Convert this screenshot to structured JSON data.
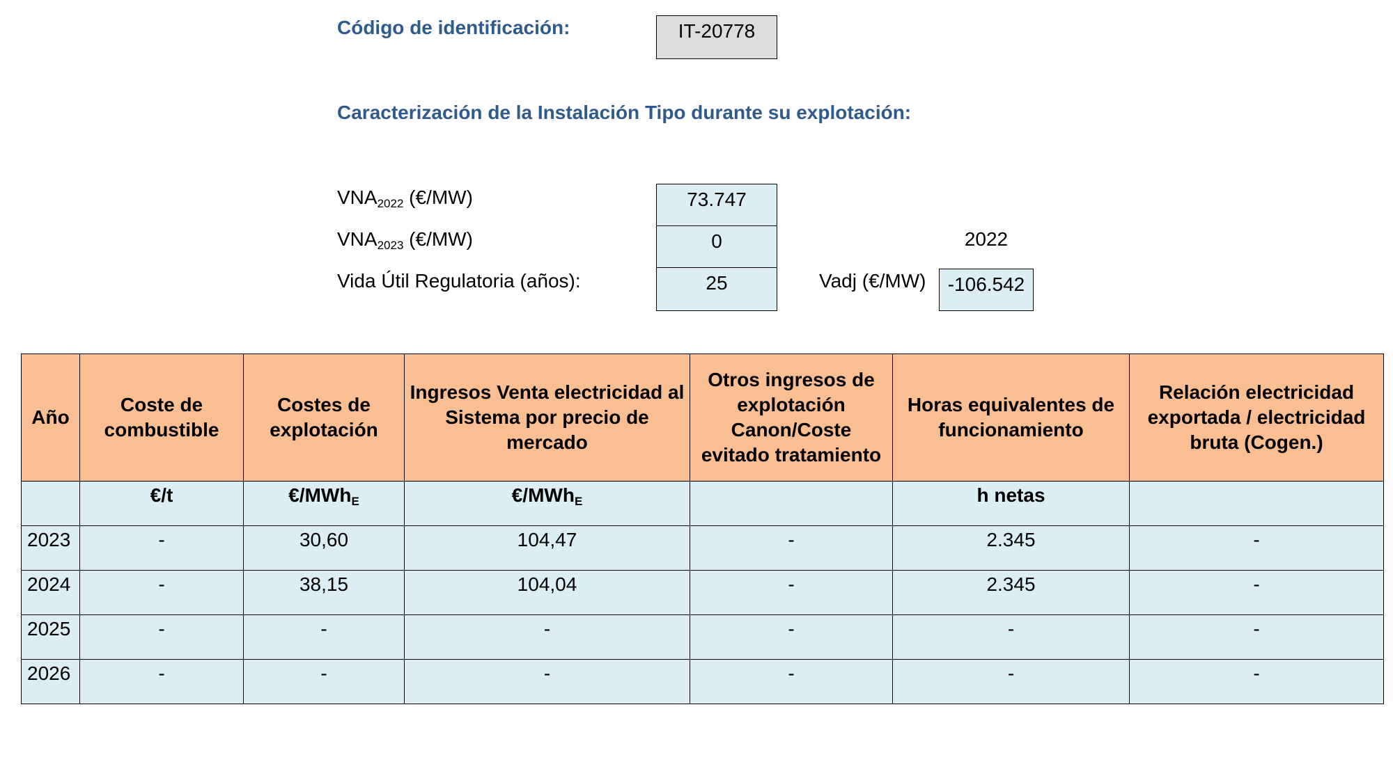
{
  "header": {
    "code_label": "Código de identificación:",
    "code_value": "IT-20778",
    "section_title": "Caracterización de la Instalación Tipo durante su explotación:"
  },
  "params": {
    "vna2022_label_main": "VNA",
    "vna2022_label_sub": "2022",
    "vna2022_label_unit": " (€/MW)",
    "vna2022_value": "73.747",
    "vna2023_label_main": "VNA",
    "vna2023_label_sub": "2023",
    "vna2023_label_unit": " (€/MW)",
    "vna2023_value": "0",
    "year_value": "2022",
    "vida_label": "Vida Útil Regulatoria (años):",
    "vida_value": "25",
    "vadj_label": "Vadj (€/MW)",
    "vadj_value": "-106.542"
  },
  "table": {
    "headers": [
      "Año",
      "Coste de combustible",
      "Costes de explotación",
      "Ingresos Venta electricidad al Sistema por precio de mercado",
      "Otros ingresos de explotación Canon/Coste evitado tratamiento",
      "Horas equivalentes de funcionamiento",
      "Relación electricidad exportada / electricidad bruta (Cogen.)"
    ],
    "units": {
      "col1": "€/t",
      "col2_main": "€/MWh",
      "col2_sub": "E",
      "col3_main": "€/MWh",
      "col3_sub": "E",
      "col5": "h netas"
    },
    "rows": [
      [
        "2023",
        "-",
        "30,60",
        "104,47",
        "-",
        "2.345",
        "-"
      ],
      [
        "2024",
        "-",
        "38,15",
        "104,04",
        "-",
        "2.345",
        "-"
      ],
      [
        "2025",
        "-",
        "-",
        "-",
        "-",
        "-",
        "-"
      ],
      [
        "2026",
        "-",
        "-",
        "-",
        "-",
        "-",
        "-"
      ]
    ]
  }
}
